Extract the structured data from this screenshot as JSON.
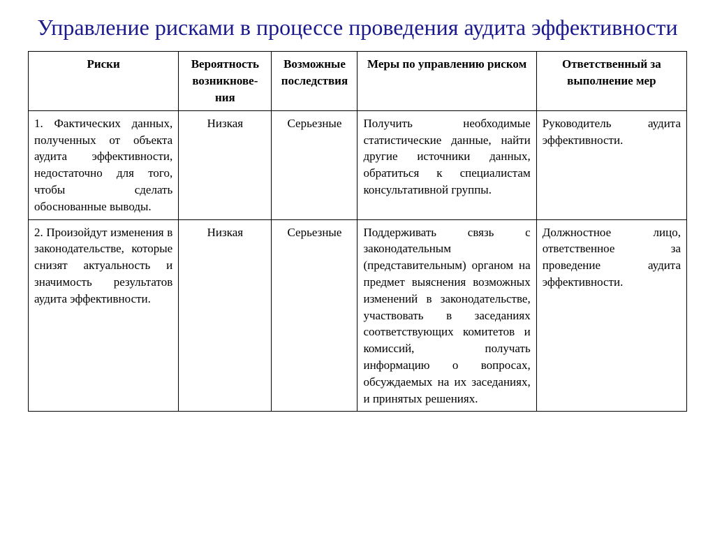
{
  "title": "Управление рисками в процессе  проведения аудита эффективности",
  "table": {
    "headers": {
      "risks": "Риски",
      "probability": "Вероятность возникнове-ния",
      "consequences": "Возможные последствия",
      "measures": "Меры по управлению риском",
      "responsible": "Ответственный за выполнение мер"
    },
    "rows": [
      {
        "risks": "1. Фактических данных, полученных от объекта аудита эффективности, недостаточно для того, чтобы сделать обоснованные выводы.",
        "probability": "Низкая",
        "consequences": "Серьезные",
        "measures": "Получить необходимые статистические данные, найти другие источники данных, обратиться к специалистам консультативной группы.",
        "responsible": "Руководитель аудита эффективности."
      },
      {
        "risks": "2. Произойдут изменения в законодательстве, которые снизят актуальность и значимость результатов аудита эффективности.",
        "probability": "Низкая",
        "consequences": "Серьезные",
        "measures": "Поддерживать связь с законодательным (представительным) органом на предмет выяснения возможных изменений в законодательстве, участвовать в заседаниях соответствующих комитетов и комиссий, получать информацию о вопросах, обсуждаемых на их заседаниях, и принятых решениях.",
        "responsible": "Должностное лицо, ответственное за проведение аудита эффективности."
      }
    ]
  },
  "styling": {
    "title_color": "#1a1a8c",
    "title_fontsize": 32,
    "body_fontsize": 17,
    "border_color": "#000000",
    "background_color": "#ffffff",
    "font_family": "Times New Roman",
    "column_widths": {
      "risks": "21%",
      "prob": "13%",
      "cons": "12%",
      "measures": "25%",
      "resp": "21%"
    }
  }
}
